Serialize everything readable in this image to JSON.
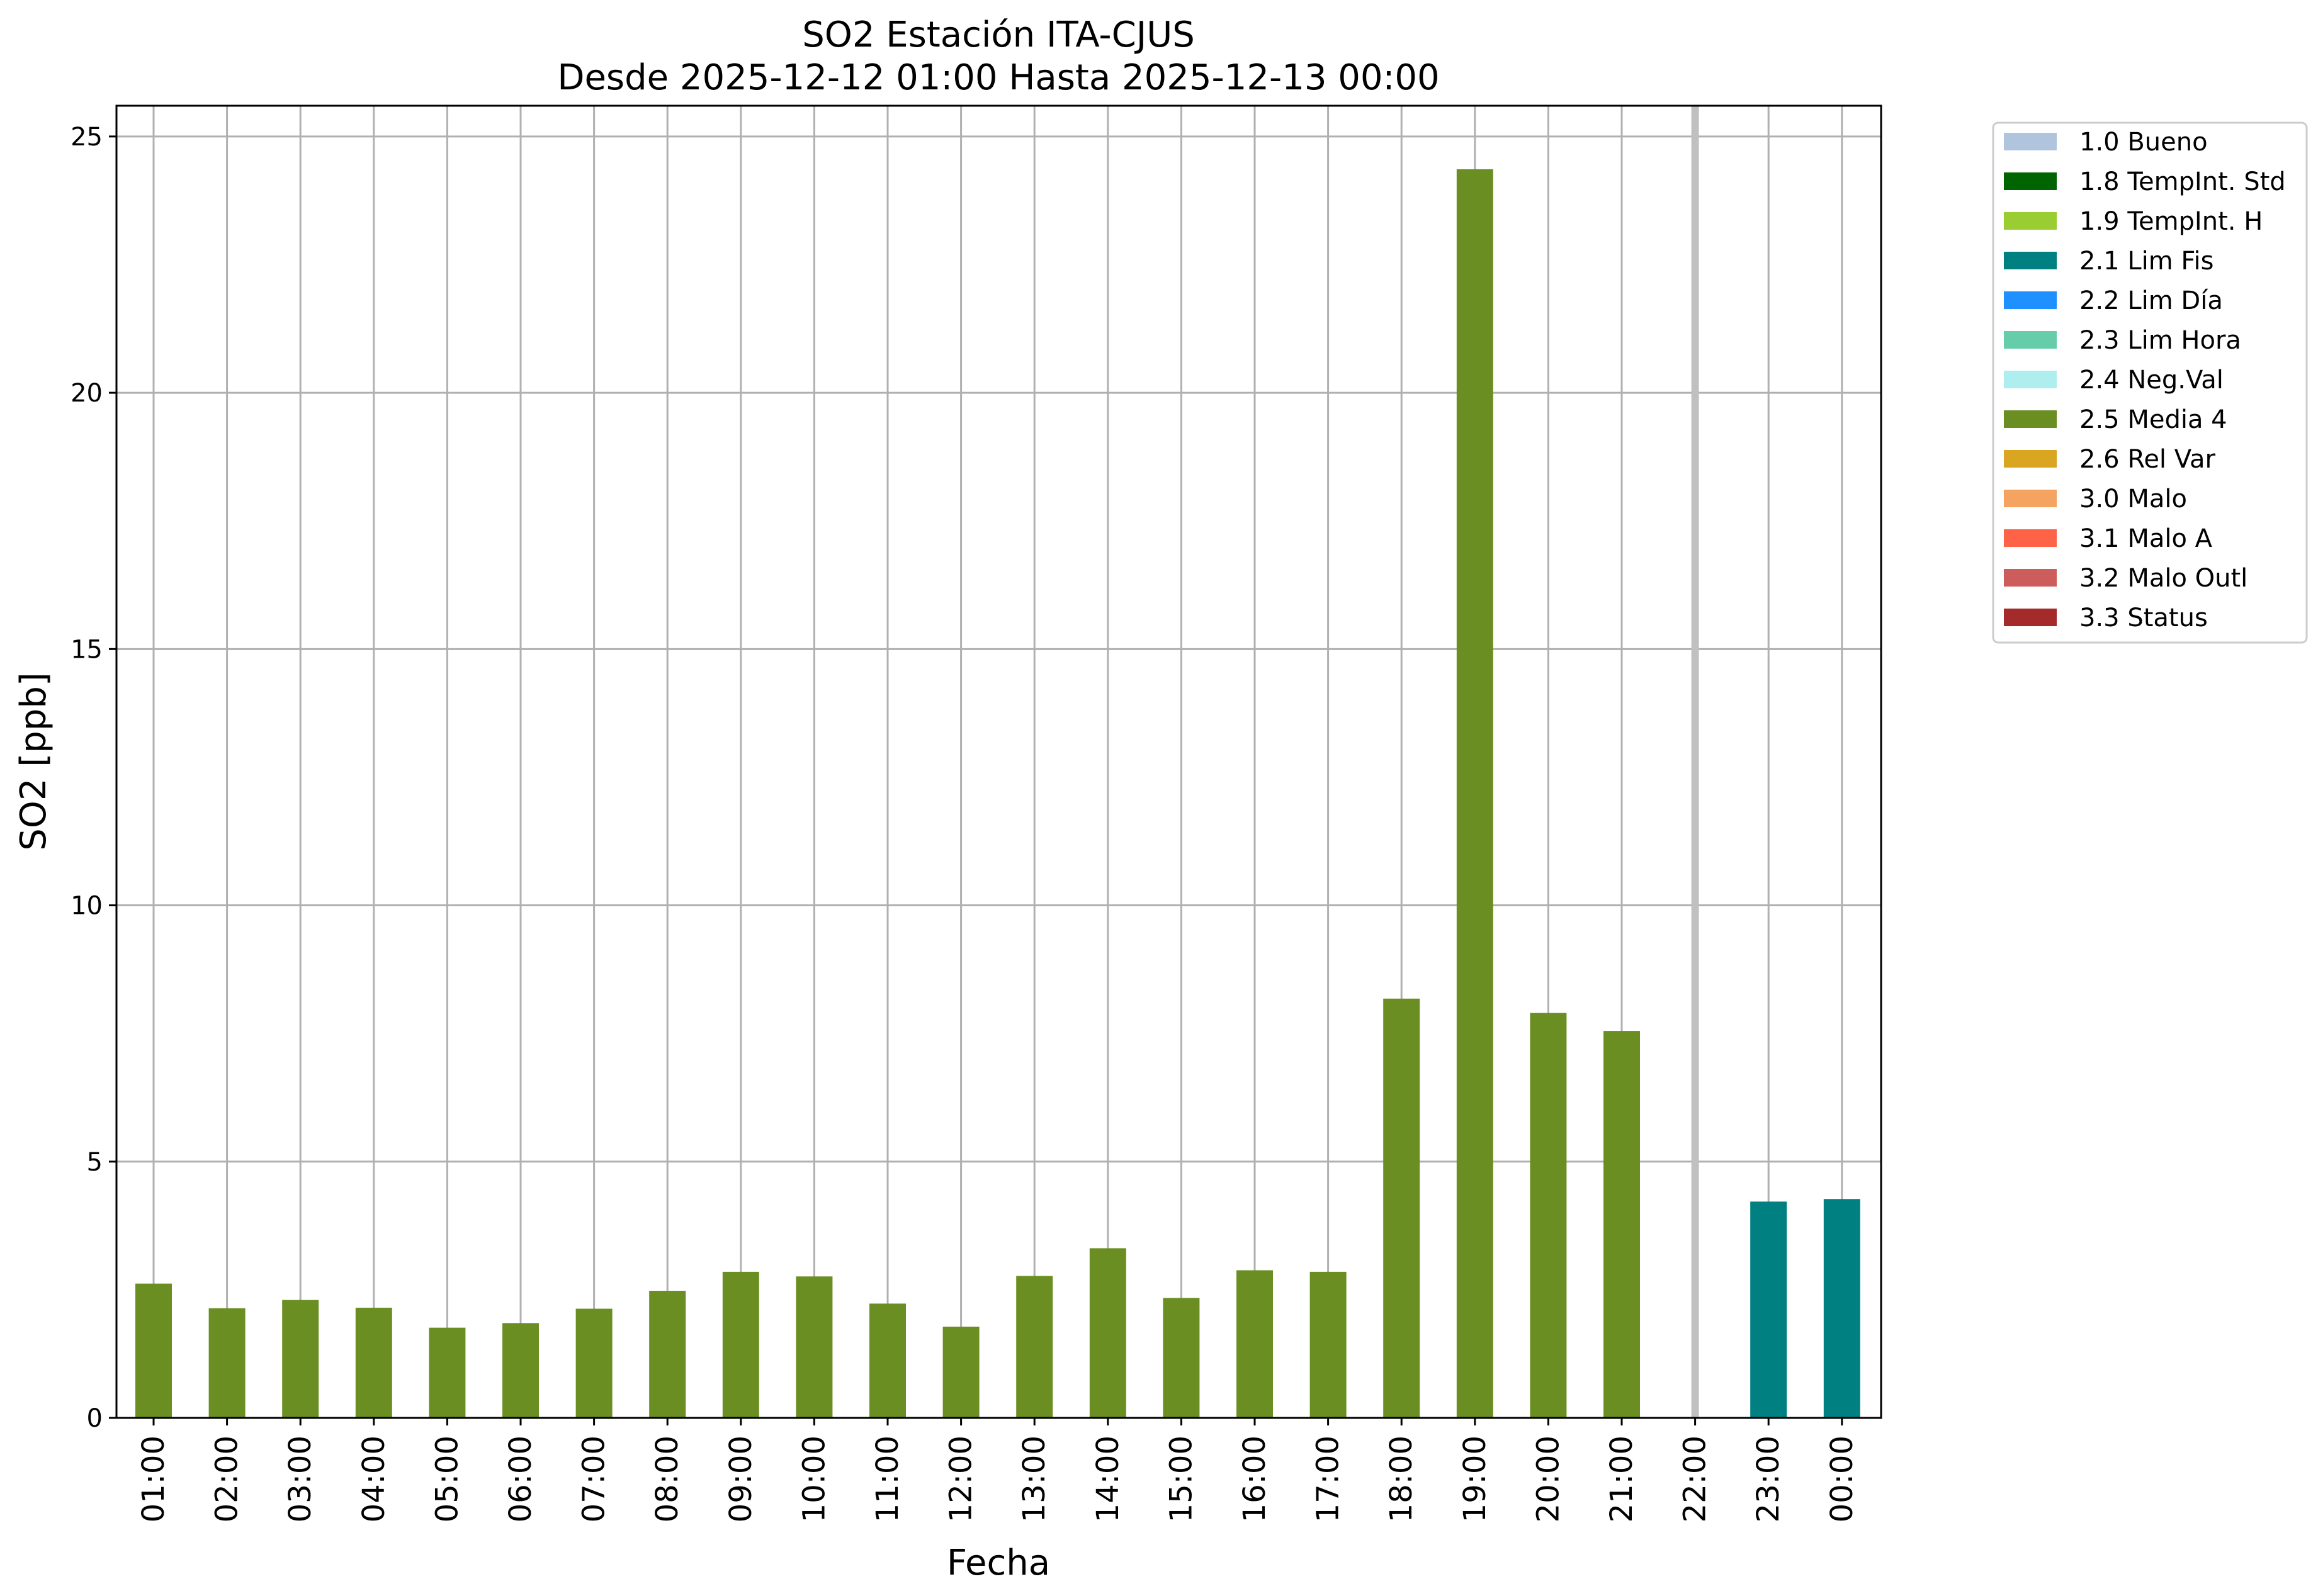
{
  "chart_data": {
    "type": "bar",
    "title": "SO2 Estación ITA-CJUS",
    "subtitle": "Desde 2025-12-12 01:00 Hasta 2025-12-13 00:00",
    "xlabel": "Fecha",
    "ylabel": "SO2 [ppb]",
    "ylim": [
      0,
      25.6
    ],
    "yticks": [
      0,
      5,
      10,
      15,
      20,
      25
    ],
    "grid": true,
    "legend_position": "outside-top-right",
    "categories": [
      "01:00",
      "02:00",
      "03:00",
      "04:00",
      "05:00",
      "06:00",
      "07:00",
      "08:00",
      "09:00",
      "10:00",
      "11:00",
      "12:00",
      "13:00",
      "14:00",
      "15:00",
      "16:00",
      "17:00",
      "18:00",
      "19:00",
      "20:00",
      "21:00",
      "22:00",
      "23:00",
      "00:00"
    ],
    "values": [
      2.62,
      2.14,
      2.3,
      2.15,
      1.76,
      1.85,
      2.13,
      2.48,
      2.85,
      2.76,
      2.23,
      1.78,
      2.77,
      3.31,
      2.34,
      2.88,
      2.85,
      8.18,
      24.36,
      7.9,
      7.55,
      null,
      4.22,
      4.27
    ],
    "flags": [
      "2.5 Media 4",
      "2.5 Media 4",
      "2.5 Media 4",
      "2.5 Media 4",
      "2.5 Media 4",
      "2.5 Media 4",
      "2.5 Media 4",
      "2.5 Media 4",
      "2.5 Media 4",
      "2.5 Media 4",
      "2.5 Media 4",
      "2.5 Media 4",
      "2.5 Media 4",
      "2.5 Media 4",
      "2.5 Media 4",
      "2.5 Media 4",
      "2.5 Media 4",
      "2.5 Media 4",
      "2.5 Media 4",
      "2.5 Media 4",
      "2.5 Media 4",
      "",
      "2.1 Lim Fis",
      "2.1 Lim Fis"
    ],
    "missing_marker_color": "#c0c0c0",
    "legend": [
      {
        "label": "1.0 Bueno",
        "color": "#b0c4de"
      },
      {
        "label": "1.8 TempInt. Std",
        "color": "#006400"
      },
      {
        "label": "1.9 TempInt. H",
        "color": "#9acd32"
      },
      {
        "label": "2.1 Lim Fis",
        "color": "#008080"
      },
      {
        "label": "2.2 Lim Día",
        "color": "#1e90ff"
      },
      {
        "label": "2.3 Lim Hora",
        "color": "#66cdaa"
      },
      {
        "label": "2.4 Neg.Val",
        "color": "#afeeee"
      },
      {
        "label": "2.5 Media 4",
        "color": "#6b8e23"
      },
      {
        "label": "2.6 Rel Var",
        "color": "#daa520"
      },
      {
        "label": "3.0 Malo",
        "color": "#f4a460"
      },
      {
        "label": "3.1 Malo A",
        "color": "#ff6347"
      },
      {
        "label": "3.2 Malo Outl",
        "color": "#cd5c5c"
      },
      {
        "label": "3.3 Status",
        "color": "#a52a2a"
      }
    ]
  }
}
